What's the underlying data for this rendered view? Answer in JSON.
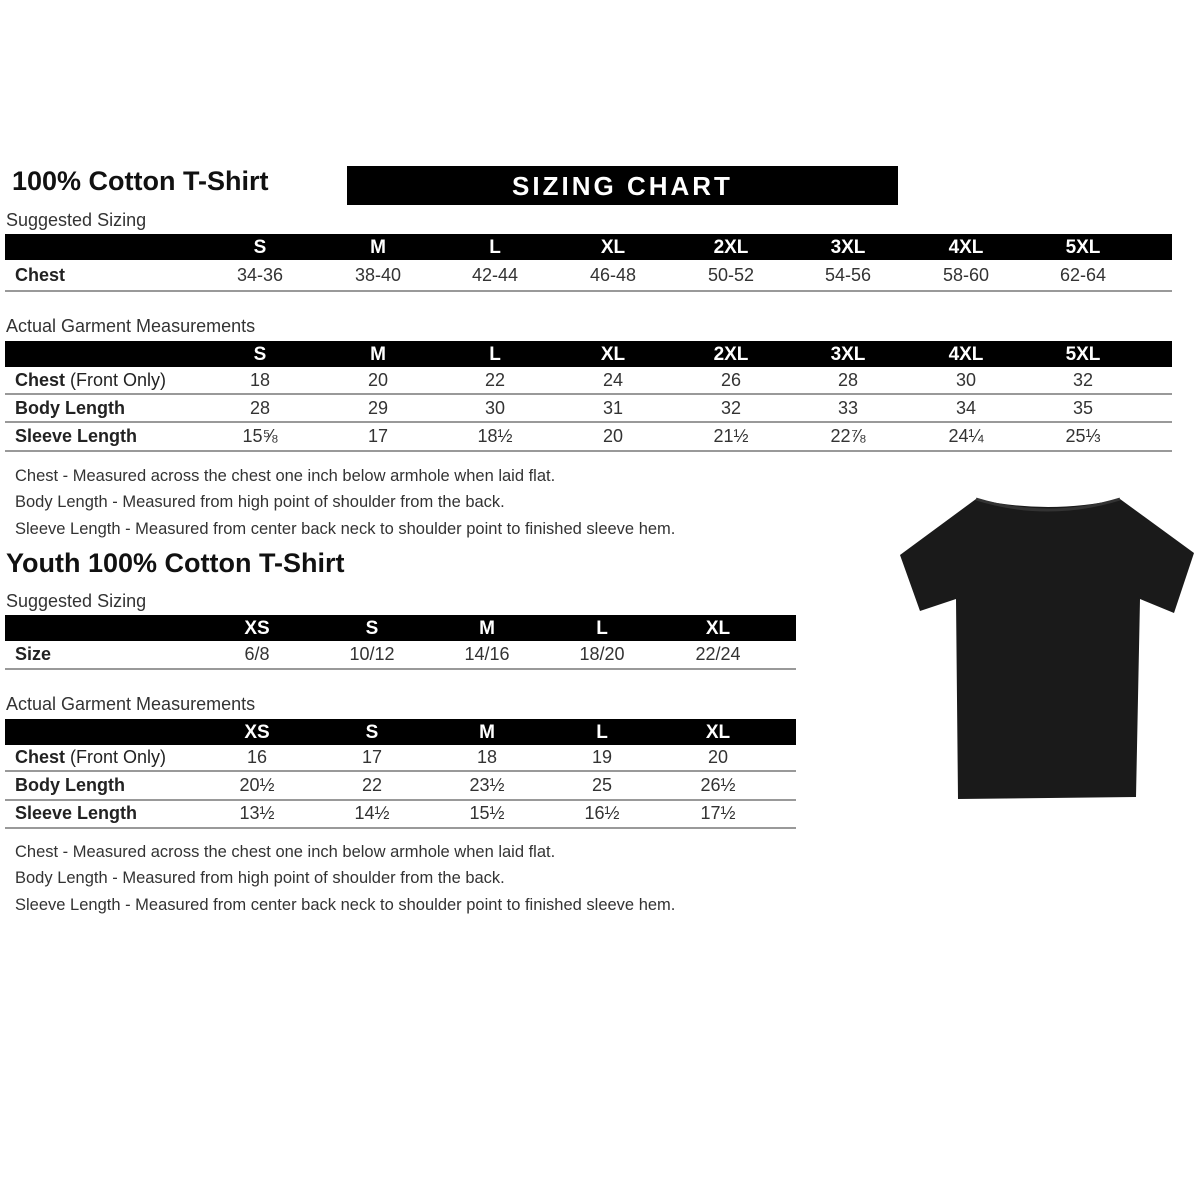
{
  "adult": {
    "title": "100% Cotton T-Shirt",
    "banner": "SIZING CHART",
    "suggested_label": "Suggested Sizing",
    "sizes": [
      "S",
      "M",
      "L",
      "XL",
      "2XL",
      "3XL",
      "4XL",
      "5XL"
    ],
    "suggested_rows": [
      {
        "label": "Chest",
        "note": "",
        "values": [
          "34-36",
          "38-40",
          "42-44",
          "46-48",
          "50-52",
          "54-56",
          "58-60",
          "62-64"
        ]
      }
    ],
    "actual_label": "Actual Garment Measurements",
    "actual_rows": [
      {
        "label": "Chest",
        "note": " (Front Only)",
        "values": [
          "18",
          "20",
          "22",
          "24",
          "26",
          "28",
          "30",
          "32"
        ]
      },
      {
        "label": "Body Length",
        "note": "",
        "values": [
          "28",
          "29",
          "30",
          "31",
          "32",
          "33",
          "34",
          "35"
        ]
      },
      {
        "label": "Sleeve Length",
        "note": "",
        "values": [
          "15⅝",
          "17",
          "18½",
          "20",
          "21½",
          "22⅞",
          "24¼",
          "25⅓"
        ]
      }
    ],
    "notes": [
      "Chest - Measured across the chest one inch below armhole when laid flat.",
      "Body Length - Measured from high point of shoulder from the back.",
      "Sleeve Length - Measured from center back neck to shoulder point to finished sleeve hem."
    ]
  },
  "youth": {
    "title": "Youth 100% Cotton T-Shirt",
    "suggested_label": "Suggested Sizing",
    "sizes": [
      "XS",
      "S",
      "M",
      "L",
      "XL"
    ],
    "suggested_rows": [
      {
        "label": "Size",
        "note": "",
        "values": [
          "6/8",
          "10/12",
          "14/16",
          "18/20",
          "22/24"
        ]
      }
    ],
    "actual_label": "Actual Garment Measurements",
    "actual_rows": [
      {
        "label": "Chest",
        "note": " (Front Only)",
        "values": [
          "16",
          "17",
          "18",
          "19",
          "20"
        ]
      },
      {
        "label": "Body Length",
        "note": "",
        "values": [
          "20½",
          "22",
          "23½",
          "25",
          "26½"
        ]
      },
      {
        "label": "Sleeve Length",
        "note": "",
        "values": [
          "13½",
          "14½",
          "15½",
          "16½",
          "17½"
        ]
      }
    ],
    "notes": [
      "Chest - Measured across the chest one inch below armhole when laid flat.",
      "Body Length - Measured from high point of shoulder from the back.",
      "Sleeve Length - Measured from center back neck to shoulder point to finished sleeve hem."
    ]
  },
  "colors": {
    "header_bg": "#000000",
    "shirt": "#1a1a1a"
  }
}
